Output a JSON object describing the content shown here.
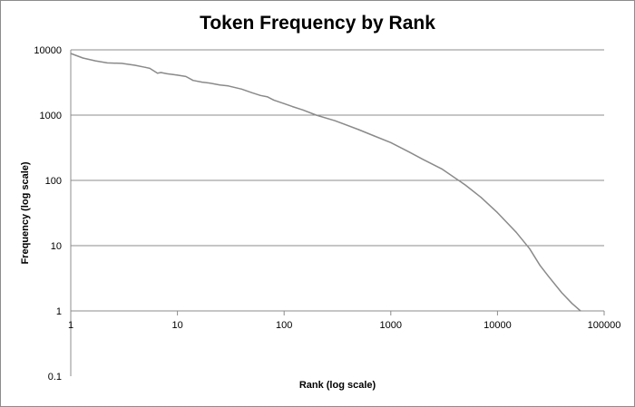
{
  "chart_data": {
    "type": "line",
    "title": "Token Frequency by Rank",
    "xlabel": "Rank (log scale)",
    "ylabel": "Frequency (log scale)",
    "xscale": "log",
    "yscale": "log",
    "xlim": [
      1,
      100000
    ],
    "ylim": [
      0.1,
      10000
    ],
    "x_ticks": [
      "1",
      "10",
      "100",
      "1000",
      "10000",
      "100000"
    ],
    "y_ticks": [
      "10000",
      "1000",
      "100",
      "10",
      "1",
      "0.1"
    ],
    "grid": "horizontal major gridlines",
    "legend": "none",
    "line_color": "#8a8a8a",
    "series": [
      {
        "x": [
          1,
          1.3,
          1.7,
          2.2,
          3,
          4,
          5,
          5.5,
          6.5,
          7,
          8,
          9,
          10,
          12,
          14,
          17,
          20,
          25,
          30,
          40,
          50,
          60,
          70,
          80,
          100,
          120,
          150,
          200,
          300,
          500,
          700,
          1000,
          1500,
          2000,
          3000,
          5000,
          7000,
          10000,
          15000,
          20000,
          25000,
          30000,
          40000,
          50000,
          60000
        ],
        "y": [
          8800,
          7500,
          6800,
          6300,
          6200,
          5800,
          5400,
          5200,
          4400,
          4500,
          4300,
          4200,
          4100,
          3900,
          3400,
          3200,
          3100,
          2900,
          2800,
          2500,
          2200,
          2000,
          1900,
          1700,
          1500,
          1350,
          1200,
          1000,
          820,
          600,
          480,
          380,
          270,
          210,
          150,
          85,
          55,
          32,
          16,
          9,
          5,
          3.4,
          1.9,
          1.3,
          1
        ]
      }
    ]
  }
}
